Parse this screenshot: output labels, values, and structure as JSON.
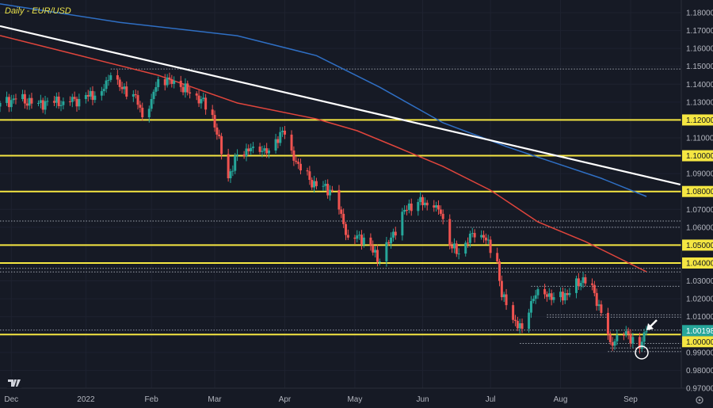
{
  "chart_data": {
    "type": "candlestick",
    "title": "Daily - EUR/USD",
    "symbol": "EUR/USD",
    "timeframe": "Daily",
    "ylim": [
      0.965,
      1.187
    ],
    "y_ticks": [
      "1.18000",
      "1.17000",
      "1.16000",
      "1.15000",
      "1.14000",
      "1.13000",
      "1.12000",
      "1.11000",
      "1.10000",
      "1.09000",
      "1.08000",
      "1.07000",
      "1.06000",
      "1.05000",
      "1.04000",
      "1.03000",
      "1.02000",
      "1.01000",
      "1.00000",
      "0.99000",
      "0.98000",
      "0.97000"
    ],
    "x_ticks": [
      {
        "date": "2021-12-01",
        "label": "Dec"
      },
      {
        "date": "2022-01-03",
        "label": "2022"
      },
      {
        "date": "2022-02-01",
        "label": "Feb"
      },
      {
        "date": "2022-03-01",
        "label": "Mar"
      },
      {
        "date": "2022-04-01",
        "label": "Apr"
      },
      {
        "date": "2022-05-02",
        "label": "May"
      },
      {
        "date": "2022-06-01",
        "label": "Jun"
      },
      {
        "date": "2022-07-01",
        "label": "Jul"
      },
      {
        "date": "2022-08-01",
        "label": "Aug"
      },
      {
        "date": "2022-09-01",
        "label": "Sep"
      }
    ],
    "close_path": [
      [
        "2021-11-26",
        1.1295
      ],
      [
        "2021-12-03",
        1.1317
      ],
      [
        "2021-12-13",
        1.1295
      ],
      [
        "2021-12-24",
        1.1304
      ],
      [
        "2021-12-31",
        1.1317
      ],
      [
        "2022-01-10",
        1.1361
      ],
      [
        "2022-01-14",
        1.145
      ],
      [
        "2022-01-18",
        1.1384
      ],
      [
        "2022-01-25",
        1.1339
      ],
      [
        "2022-01-28",
        1.1215
      ],
      [
        "2022-02-01",
        1.1317
      ],
      [
        "2022-02-04",
        1.1428
      ],
      [
        "2022-02-09",
        1.1428
      ],
      [
        "2022-02-14",
        1.1384
      ],
      [
        "2022-02-18",
        1.1348
      ],
      [
        "2022-02-23",
        1.1317
      ],
      [
        "2022-02-28",
        1.1228
      ],
      [
        "2022-03-02",
        1.1118
      ],
      [
        "2022-03-07",
        1.0874
      ],
      [
        "2022-03-11",
        1.1007
      ],
      [
        "2022-03-18",
        1.1051
      ],
      [
        "2022-03-25",
        1.1029
      ],
      [
        "2022-03-31",
        1.114
      ],
      [
        "2022-04-04",
        1.1029
      ],
      [
        "2022-04-08",
        1.0918
      ],
      [
        "2022-04-15",
        1.083
      ],
      [
        "2022-04-22",
        1.0808
      ],
      [
        "2022-04-26",
        1.0675
      ],
      [
        "2022-04-29",
        1.0542
      ],
      [
        "2022-05-06",
        1.0542
      ],
      [
        "2022-05-13",
        1.0409
      ],
      [
        "2022-05-18",
        1.0542
      ],
      [
        "2022-05-24",
        1.0697
      ],
      [
        "2022-05-30",
        1.0741
      ],
      [
        "2022-06-06",
        1.071
      ],
      [
        "2022-06-09",
        1.0675
      ],
      [
        "2022-06-13",
        1.0497
      ],
      [
        "2022-06-17",
        1.0453
      ],
      [
        "2022-06-22",
        1.0564
      ],
      [
        "2022-06-28",
        1.0542
      ],
      [
        "2022-07-04",
        1.0409
      ],
      [
        "2022-07-06",
        1.0209
      ],
      [
        "2022-07-12",
        1.0076
      ],
      [
        "2022-07-15",
        1.0032
      ],
      [
        "2022-07-19",
        1.0187
      ],
      [
        "2022-07-22",
        1.0254
      ],
      [
        "2022-07-29",
        1.0209
      ],
      [
        "2022-08-05",
        1.0232
      ],
      [
        "2022-08-11",
        1.032
      ],
      [
        "2022-08-16",
        1.0232
      ],
      [
        "2022-08-19",
        1.0121
      ],
      [
        "2022-08-23",
        0.9957
      ],
      [
        "2022-08-30",
        1.0019
      ],
      [
        "2022-09-05",
        0.9921
      ],
      [
        "2022-09-08",
        1.00198
      ]
    ],
    "series": [
      {
        "kind": "moving-average",
        "color": "#2f6fc4",
        "points": [
          [
            "2021-11-26",
            1.1849
          ],
          [
            "2022-01-18",
            1.1746
          ],
          [
            "2022-03-11",
            1.1671
          ],
          [
            "2022-04-15",
            1.156
          ],
          [
            "2022-05-13",
            1.1383
          ],
          [
            "2022-06-10",
            1.1184
          ],
          [
            "2022-07-08",
            1.1051
          ],
          [
            "2022-07-29",
            1.0962
          ],
          [
            "2022-08-19",
            1.0874
          ],
          [
            "2022-09-08",
            1.0772
          ]
        ]
      },
      {
        "kind": "moving-average",
        "color": "#e0453c",
        "points": [
          [
            "2021-11-26",
            1.1672
          ],
          [
            "2021-12-31",
            1.1561
          ],
          [
            "2022-02-04",
            1.145
          ],
          [
            "2022-03-11",
            1.1295
          ],
          [
            "2022-04-15",
            1.1206
          ],
          [
            "2022-05-03",
            1.114
          ],
          [
            "2022-05-20",
            1.1051
          ],
          [
            "2022-06-10",
            1.094
          ],
          [
            "2022-07-01",
            1.0807
          ],
          [
            "2022-07-22",
            1.063
          ],
          [
            "2022-08-12",
            1.052
          ],
          [
            "2022-09-08",
            1.0351
          ]
        ]
      },
      {
        "kind": "trendline",
        "color": "#ffffff",
        "points": [
          [
            "2021-11-26",
            1.1725
          ],
          [
            "2022-09-23",
            1.0839
          ]
        ]
      }
    ],
    "support_resistance": [
      1.12,
      1.1,
      1.08,
      1.05,
      1.04,
      1.0
    ],
    "dotted_levels": [
      {
        "price": 1.1485,
        "from": "2022-01-14"
      },
      {
        "price": 1.0635,
        "from": "2021-11-26"
      },
      {
        "price": 1.06,
        "from": "2022-06-16"
      },
      {
        "price": 1.037,
        "from": "2021-11-26"
      },
      {
        "price": 1.035,
        "from": "2021-11-26"
      },
      {
        "price": 1.027,
        "from": "2022-07-19"
      },
      {
        "price": 1.011,
        "from": "2022-07-26"
      },
      {
        "price": 1.0097,
        "from": "2022-07-26"
      },
      {
        "price": 1.0025,
        "from": "2021-11-26"
      },
      {
        "price": 0.995,
        "from": "2022-07-14"
      },
      {
        "price": 0.9925,
        "from": "2022-08-23"
      },
      {
        "price": 0.9905,
        "from": "2022-08-22"
      }
    ],
    "last_price": "1.00198",
    "last_price_color": "#26a69a",
    "level_color": "#f5e642",
    "up_color": "#26a69a",
    "down_color": "#ef5350"
  },
  "ui": {
    "title": "Daily - EUR/USD",
    "logo": "TV",
    "settings_icon": "gear-icon"
  }
}
